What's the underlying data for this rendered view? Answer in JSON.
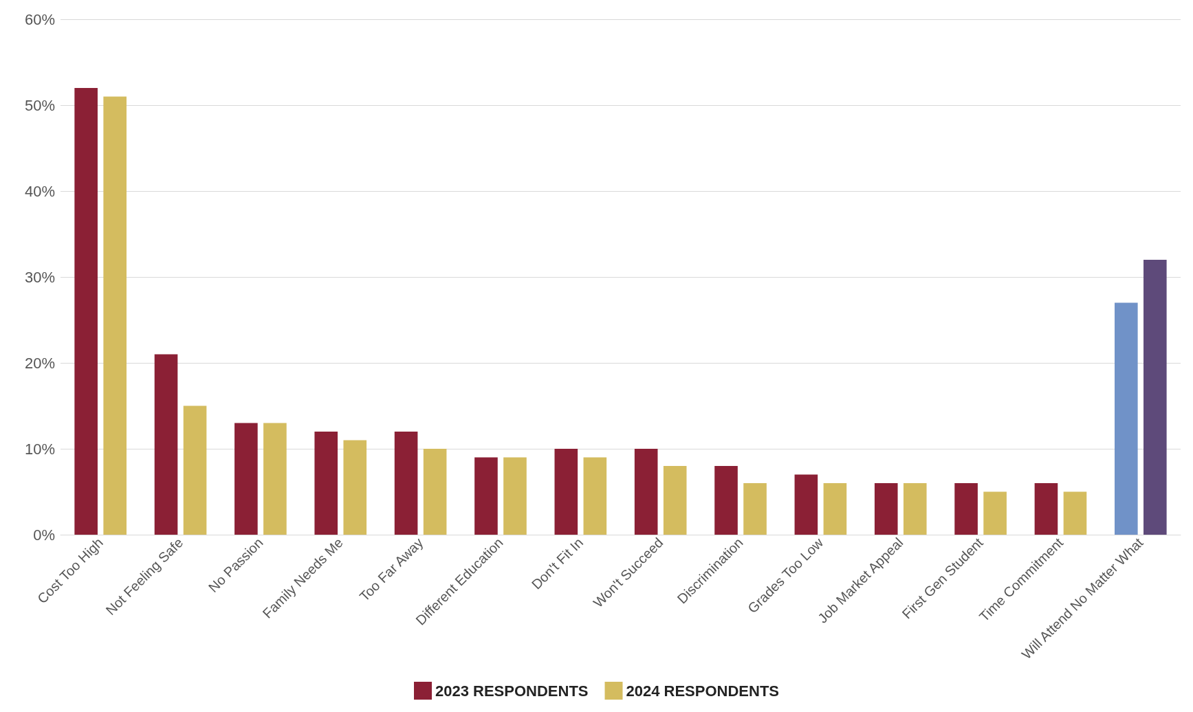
{
  "chart_data": {
    "type": "bar",
    "categories": [
      "Cost Too High",
      "Not Feeling Safe",
      "No Passion",
      "Family Needs Me",
      "Too Far Away",
      "Different Education",
      "Don't Fit In",
      "Won't Succeed",
      "Discrimination",
      "Grades Too Low",
      "Job Market Appeal",
      "First Gen Student",
      "Time Commitment",
      "Will Attend No Matter What"
    ],
    "series": [
      {
        "name": "2023 RESPONDENTS",
        "color": "#8b2035",
        "colors": [
          "#8b2035",
          "#8b2035",
          "#8b2035",
          "#8b2035",
          "#8b2035",
          "#8b2035",
          "#8b2035",
          "#8b2035",
          "#8b2035",
          "#8b2035",
          "#8b2035",
          "#8b2035",
          "#8b2035",
          "#7092c8"
        ],
        "values": [
          52,
          21,
          13,
          12,
          12,
          9,
          10,
          10,
          8,
          7,
          6,
          6,
          6,
          27
        ]
      },
      {
        "name": "2024 RESPONDENTS",
        "color": "#d4bc5f",
        "colors": [
          "#d4bc5f",
          "#d4bc5f",
          "#d4bc5f",
          "#d4bc5f",
          "#d4bc5f",
          "#d4bc5f",
          "#d4bc5f",
          "#d4bc5f",
          "#d4bc5f",
          "#d4bc5f",
          "#d4bc5f",
          "#d4bc5f",
          "#d4bc5f",
          "#5e4a7a"
        ],
        "values": [
          51,
          15,
          13,
          11,
          10,
          9,
          9,
          8,
          6,
          6,
          6,
          5,
          5,
          32
        ]
      }
    ],
    "ylim": [
      0,
      60
    ],
    "yticks": [
      {
        "value": 0,
        "label": "0%"
      },
      {
        "value": 10,
        "label": "10%"
      },
      {
        "value": 20,
        "label": "20%"
      },
      {
        "value": 30,
        "label": "30%"
      },
      {
        "value": 40,
        "label": "40%"
      },
      {
        "value": 50,
        "label": "50%"
      },
      {
        "value": 60,
        "label": "60%"
      }
    ],
    "grid": "y",
    "legend": "bottom"
  }
}
